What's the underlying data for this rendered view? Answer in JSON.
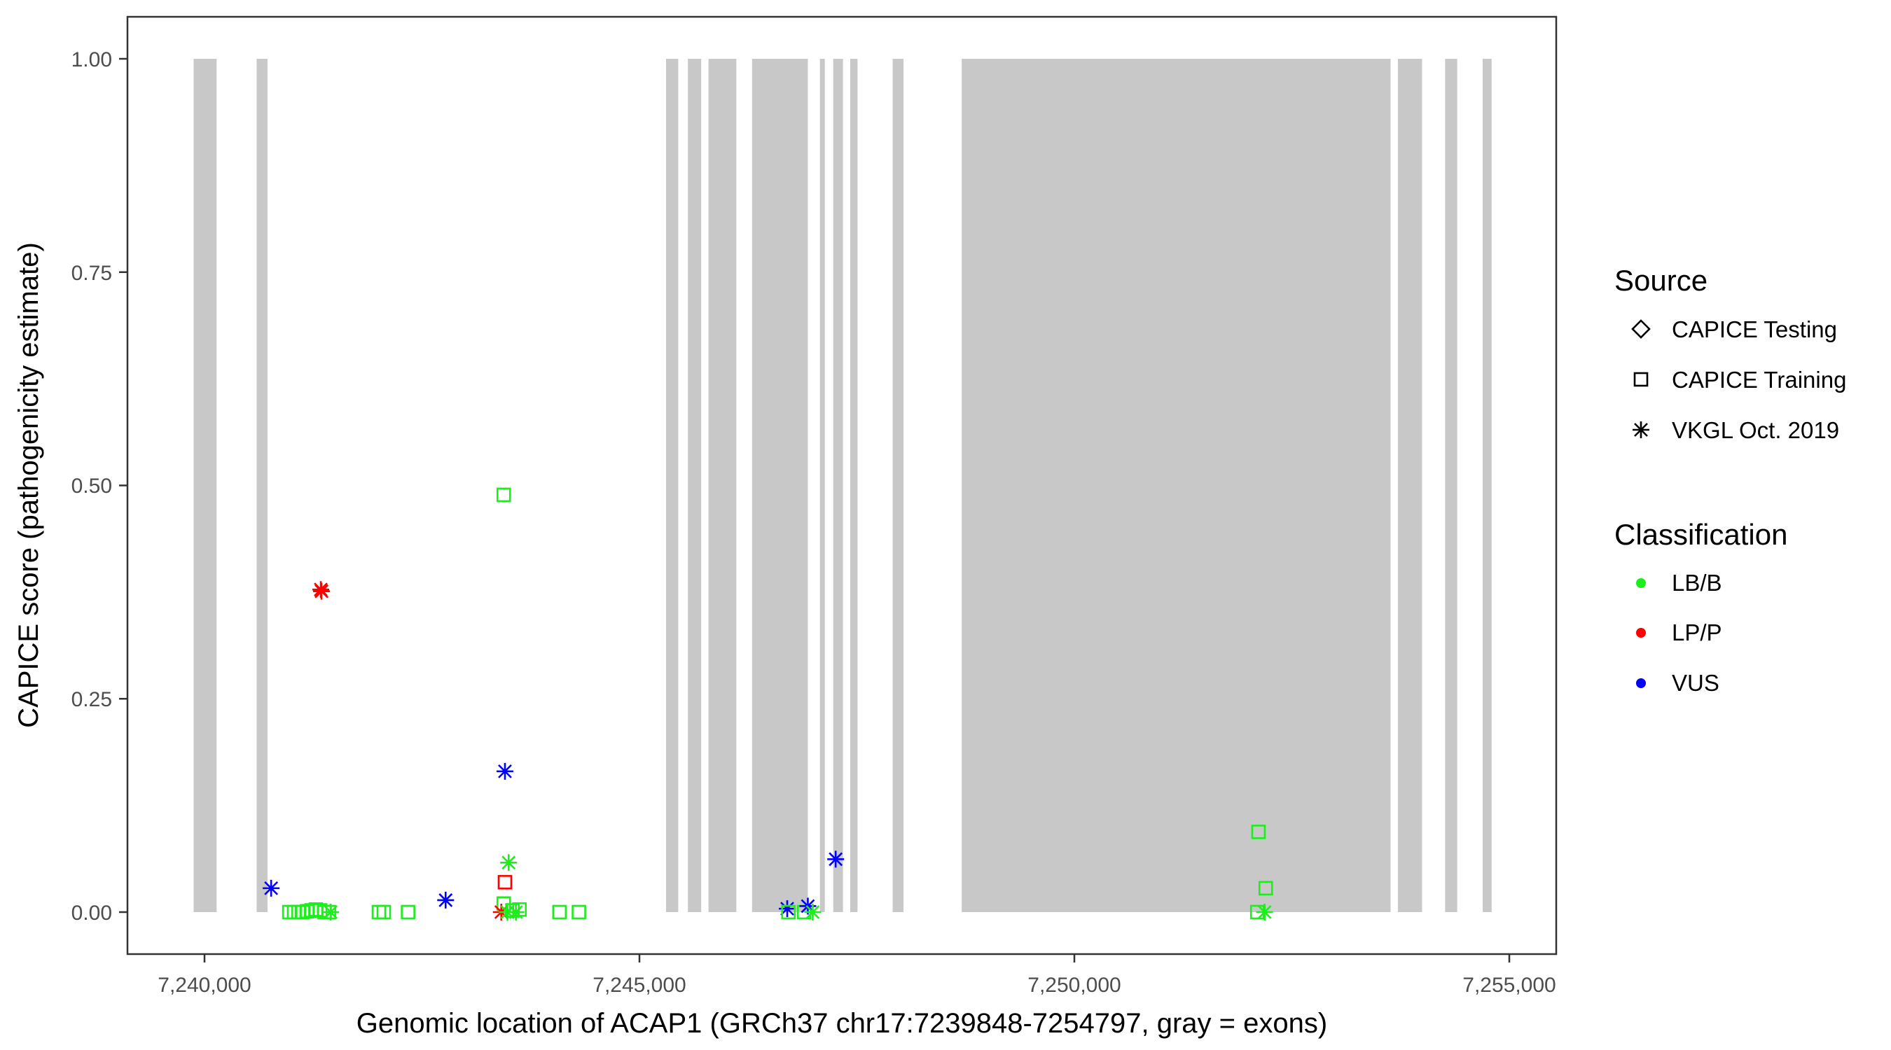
{
  "chart_data": {
    "type": "scatter",
    "xlabel": "Genomic location of ACAP1 (GRCh37 chr17:7239848-7254797, gray = exons)",
    "ylabel": "CAPICE score (pathogenicity estimate)",
    "xlim": [
      7239500,
      7255300
    ],
    "ylim": [
      -0.045,
      1.05
    ],
    "x_ticks": [
      7240000,
      7245000,
      7250000,
      7255000
    ],
    "x_tick_labels": [
      "7,240,000",
      "7,245,000",
      "7,250,000",
      "7,255,000"
    ],
    "y_ticks": [
      0,
      0.25,
      0.5,
      0.75,
      1.0
    ],
    "y_tick_labels": [
      "0.00",
      "0.25",
      "0.50",
      "0.75",
      "1.00"
    ],
    "grid": false,
    "legend_placement": "right",
    "exon_color": "#c8c8c8",
    "exons": [
      [
        7239875,
        7240139
      ],
      [
        7240599,
        7240724
      ],
      [
        7245306,
        7245446
      ],
      [
        7245557,
        7245710
      ],
      [
        7245794,
        7246114
      ],
      [
        7246295,
        7246936
      ],
      [
        7247075,
        7247131
      ],
      [
        7247228,
        7247340
      ],
      [
        7247423,
        7247507
      ],
      [
        7247911,
        7248036
      ],
      [
        7248705,
        7253635
      ],
      [
        7253719,
        7253997
      ],
      [
        7254262,
        7254401
      ],
      [
        7254694,
        7254797
      ]
    ],
    "legend": {
      "source_title": "Source",
      "source_items": [
        {
          "label": "CAPICE Testing",
          "shape": "diamond"
        },
        {
          "label": "CAPICE Training",
          "shape": "square"
        },
        {
          "label": "VKGL Oct. 2019",
          "shape": "asterisk"
        }
      ],
      "class_title": "Classification",
      "class_items": [
        {
          "label": "LB/B",
          "color": "#1aef1a"
        },
        {
          "label": "LP/P",
          "color": "#ff0000"
        },
        {
          "label": "VUS",
          "color": "#0000ff"
        }
      ]
    },
    "points": [
      {
        "x": 7240766,
        "y": 0.028,
        "source": "VKGL Oct. 2019",
        "class": "VUS"
      },
      {
        "x": 7241337,
        "y": 0.378,
        "source": "VKGL Oct. 2019",
        "class": "LP/P"
      },
      {
        "x": 7241345,
        "y": 0.376,
        "source": "VKGL Oct. 2019",
        "class": "LP/P"
      },
      {
        "x": 7240975,
        "y": 0.0,
        "source": "CAPICE Training",
        "class": "LB/B"
      },
      {
        "x": 7241030,
        "y": 0.0,
        "source": "CAPICE Training",
        "class": "LB/B"
      },
      {
        "x": 7241080,
        "y": 0.0,
        "source": "CAPICE Training",
        "class": "LB/B"
      },
      {
        "x": 7241130,
        "y": 0.0,
        "source": "CAPICE Training",
        "class": "LB/B"
      },
      {
        "x": 7241180,
        "y": 0.001,
        "source": "CAPICE Training",
        "class": "LB/B"
      },
      {
        "x": 7241230,
        "y": 0.002,
        "source": "CAPICE Training",
        "class": "LB/B"
      },
      {
        "x": 7241280,
        "y": 0.003,
        "source": "CAPICE Training",
        "class": "LB/B"
      },
      {
        "x": 7241330,
        "y": 0.002,
        "source": "CAPICE Training",
        "class": "LB/B"
      },
      {
        "x": 7241380,
        "y": 0.0,
        "source": "CAPICE Training",
        "class": "LB/B"
      },
      {
        "x": 7241430,
        "y": 0.0,
        "source": "CAPICE Training",
        "class": "LB/B"
      },
      {
        "x": 7241450,
        "y": 0.0,
        "source": "VKGL Oct. 2019",
        "class": "LB/B"
      },
      {
        "x": 7242005,
        "y": 0.0,
        "source": "CAPICE Training",
        "class": "LB/B"
      },
      {
        "x": 7242061,
        "y": 0.0,
        "source": "CAPICE Training",
        "class": "LB/B"
      },
      {
        "x": 7242340,
        "y": 0.0,
        "source": "CAPICE Training",
        "class": "LB/B"
      },
      {
        "x": 7242772,
        "y": 0.014,
        "source": "VKGL Oct. 2019",
        "class": "VUS"
      },
      {
        "x": 7243440,
        "y": 0.489,
        "source": "CAPICE Training",
        "class": "LB/B"
      },
      {
        "x": 7243454,
        "y": 0.165,
        "source": "VKGL Oct. 2019",
        "class": "VUS"
      },
      {
        "x": 7243496,
        "y": 0.058,
        "source": "VKGL Oct. 2019",
        "class": "LB/B"
      },
      {
        "x": 7243454,
        "y": 0.035,
        "source": "CAPICE Training",
        "class": "LP/P"
      },
      {
        "x": 7243440,
        "y": 0.01,
        "source": "CAPICE Training",
        "class": "LB/B"
      },
      {
        "x": 7243412,
        "y": 0.0,
        "source": "VKGL Oct. 2019",
        "class": "LP/P"
      },
      {
        "x": 7243482,
        "y": 0.0,
        "source": "VKGL Oct. 2019",
        "class": "LB/B"
      },
      {
        "x": 7243540,
        "y": 0.002,
        "source": "CAPICE Training",
        "class": "LB/B"
      },
      {
        "x": 7243580,
        "y": 0.0,
        "source": "VKGL Oct. 2019",
        "class": "LB/B"
      },
      {
        "x": 7243621,
        "y": 0.003,
        "source": "CAPICE Training",
        "class": "LB/B"
      },
      {
        "x": 7244081,
        "y": 0.0,
        "source": "CAPICE Training",
        "class": "LB/B"
      },
      {
        "x": 7244304,
        "y": 0.0,
        "source": "CAPICE Training",
        "class": "LB/B"
      },
      {
        "x": 7246699,
        "y": 0.004,
        "source": "VKGL Oct. 2019",
        "class": "VUS"
      },
      {
        "x": 7246713,
        "y": 0.0,
        "source": "CAPICE Training",
        "class": "LB/B"
      },
      {
        "x": 7246894,
        "y": 0.0,
        "source": "CAPICE Training",
        "class": "LB/B"
      },
      {
        "x": 7246936,
        "y": 0.007,
        "source": "VKGL Oct. 2019",
        "class": "VUS"
      },
      {
        "x": 7246992,
        "y": 0.0,
        "source": "VKGL Oct. 2019",
        "class": "LB/B"
      },
      {
        "x": 7247256,
        "y": 0.062,
        "source": "VKGL Oct. 2019",
        "class": "VUS"
      },
      {
        "x": 7252117,
        "y": 0.094,
        "source": "CAPICE Training",
        "class": "LB/B"
      },
      {
        "x": 7252200,
        "y": 0.028,
        "source": "CAPICE Training",
        "class": "LB/B"
      },
      {
        "x": 7252103,
        "y": 0.0,
        "source": "CAPICE Training",
        "class": "LB/B"
      },
      {
        "x": 7252187,
        "y": 0.0,
        "source": "VKGL Oct. 2019",
        "class": "LB/B"
      }
    ]
  }
}
